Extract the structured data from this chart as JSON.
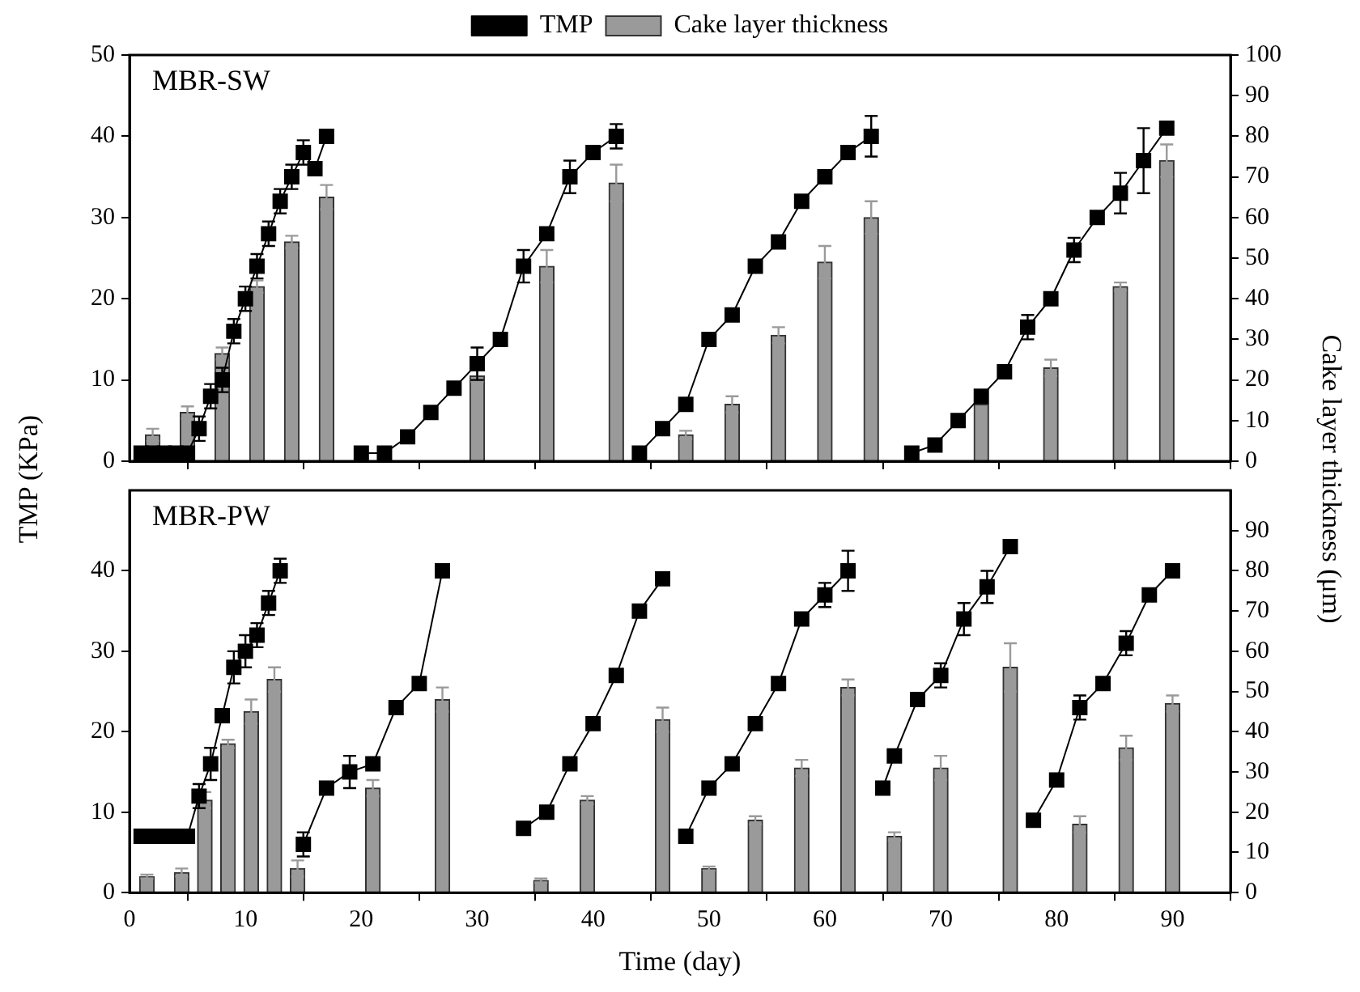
{
  "chart_data": [
    {
      "type": "line",
      "annotations": [
        "MBR-SW"
      ],
      "xlim": [
        0,
        95
      ],
      "xticks": [
        0,
        10,
        20,
        30,
        40,
        50,
        60,
        70,
        80,
        90
      ],
      "ylim": [
        0,
        50
      ],
      "yticks": [
        0,
        10,
        20,
        30,
        40,
        50
      ],
      "y2lim": [
        0,
        100
      ],
      "y2ticks": [
        0,
        10,
        20,
        30,
        40,
        50,
        60,
        70,
        80,
        90,
        100
      ],
      "tick_labels": "y",
      "grid": false,
      "legend": "top",
      "marker": "square",
      "series": [
        {
          "name": "TMP",
          "axis": "y",
          "color": "#000000",
          "x": [
            1,
            2,
            3,
            4,
            5,
            6,
            7,
            8,
            9,
            10,
            11,
            12,
            13,
            14,
            15,
            16,
            17,
            18.5,
            20,
            22,
            24,
            26,
            28,
            30,
            32,
            34,
            36,
            38,
            40,
            42,
            43,
            44,
            46,
            48,
            50,
            52,
            54,
            56,
            58,
            60,
            62,
            64,
            66,
            67.5,
            69.5,
            71.5,
            73.5,
            75.5,
            77.5,
            79.5,
            81.5,
            83.5,
            85.5,
            87.5,
            89.5
          ],
          "values": [
            1,
            1,
            1,
            1,
            1,
            4,
            8,
            10,
            16,
            20,
            24,
            28,
            32,
            35,
            38,
            36,
            40,
            null,
            1,
            1,
            3,
            6,
            9,
            12,
            15,
            24,
            28,
            35,
            38,
            40,
            null,
            1,
            4,
            7,
            15,
            18,
            24,
            27,
            32,
            35,
            38,
            40,
            null,
            1,
            2,
            5,
            8,
            11,
            16.5,
            20,
            26,
            30,
            33,
            37,
            41
          ],
          "errors": [
            null,
            null,
            null,
            null,
            null,
            1.5,
            1.5,
            1.5,
            1.5,
            1.5,
            1.5,
            1.5,
            1.5,
            1.5,
            1.5,
            null,
            null,
            null,
            null,
            null,
            null,
            null,
            null,
            2,
            null,
            2,
            null,
            2,
            null,
            1.5,
            null,
            null,
            null,
            null,
            null,
            null,
            null,
            null,
            null,
            null,
            null,
            2.5,
            null,
            null,
            null,
            null,
            null,
            null,
            1.5,
            null,
            1.5,
            null,
            2.5,
            4,
            null
          ]
        },
        {
          "name": "Cake layer thickness",
          "type": "bar",
          "axis": "y2",
          "color": "#9a9a9a",
          "x": [
            2,
            5,
            8,
            11,
            14,
            17,
            30,
            36,
            42,
            48,
            52,
            56,
            60,
            64,
            73.5,
            79.5,
            85.5,
            89.5
          ],
          "values": [
            6.5,
            12,
            26.5,
            43,
            54,
            65,
            21,
            48,
            68.5,
            6.5,
            14,
            31,
            49,
            60,
            14,
            23,
            43,
            74
          ],
          "errors": [
            1.5,
            1.5,
            1.5,
            1.5,
            1.5,
            3,
            1.5,
            4,
            4.5,
            1,
            2,
            2,
            4,
            4,
            null,
            2,
            1,
            4
          ]
        }
      ]
    },
    {
      "type": "line",
      "annotations": [
        "MBR-PW"
      ],
      "xlabel": "Time (day)",
      "ylabel": "TMP (KPa)",
      "y2label": "Cake layer thickness (μm)",
      "xlim": [
        0,
        95
      ],
      "xticks": [
        0,
        10,
        20,
        30,
        40,
        50,
        60,
        70,
        80,
        90
      ],
      "ylim": [
        0,
        50
      ],
      "yticks": [
        0,
        10,
        20,
        30,
        40
      ],
      "y2lim": [
        0,
        100
      ],
      "y2ticks": [
        0,
        10,
        20,
        30,
        40,
        50,
        60,
        70,
        80,
        90
      ],
      "grid": false,
      "marker": "square",
      "series": [
        {
          "axis": "y",
          "color": "#000000",
          "x": [
            1,
            2,
            3,
            4,
            5,
            6,
            7,
            8,
            9,
            10,
            11,
            12,
            13,
            14,
            15,
            17,
            19,
            21,
            23,
            25,
            27,
            31,
            34,
            36,
            38,
            40,
            42,
            44,
            46,
            47,
            48,
            50,
            52,
            54,
            56,
            58,
            60,
            62,
            64,
            65,
            66,
            68,
            70,
            72,
            74,
            76,
            77,
            78,
            80,
            82,
            84,
            86,
            88,
            90
          ],
          "values": [
            7,
            7,
            7,
            7,
            7,
            12,
            16,
            22,
            28,
            30,
            32,
            36,
            40,
            null,
            6,
            13,
            15,
            16,
            23,
            26,
            40,
            null,
            8,
            10,
            16,
            21,
            27,
            35,
            39,
            null,
            7,
            13,
            16,
            21,
            26,
            34,
            37,
            40,
            null,
            13,
            17,
            24,
            27,
            34,
            38,
            43,
            null,
            9,
            14,
            23,
            26,
            31,
            37,
            40
          ],
          "errors": [
            null,
            null,
            null,
            null,
            null,
            1.5,
            2,
            null,
            2,
            2,
            1.5,
            1.5,
            1.5,
            null,
            1.5,
            null,
            2,
            null,
            null,
            null,
            null,
            null,
            null,
            null,
            null,
            null,
            null,
            null,
            null,
            null,
            null,
            null,
            null,
            null,
            null,
            null,
            1.5,
            2.5,
            null,
            null,
            null,
            null,
            1.5,
            2,
            2,
            null,
            null,
            null,
            null,
            1.5,
            null,
            1.5,
            null,
            null
          ]
        },
        {
          "type": "bar",
          "axis": "y2",
          "color": "#9a9a9a",
          "x": [
            1.5,
            4.5,
            6.5,
            8.5,
            10.5,
            12.5,
            14.5,
            21,
            27,
            35.5,
            39.5,
            46,
            50,
            54,
            58,
            62,
            66,
            70,
            76,
            82,
            86,
            90
          ],
          "values": [
            4,
            5,
            23,
            37,
            45,
            53,
            6,
            26,
            48,
            3,
            23,
            43,
            6,
            18,
            31,
            51,
            14,
            31,
            56,
            17,
            36,
            47
          ],
          "errors": [
            0.5,
            1,
            2,
            1,
            3,
            3,
            2,
            2,
            3,
            0.5,
            1,
            3,
            0.5,
            1,
            2,
            2,
            1,
            3,
            6,
            2,
            3,
            2
          ]
        }
      ]
    }
  ]
}
